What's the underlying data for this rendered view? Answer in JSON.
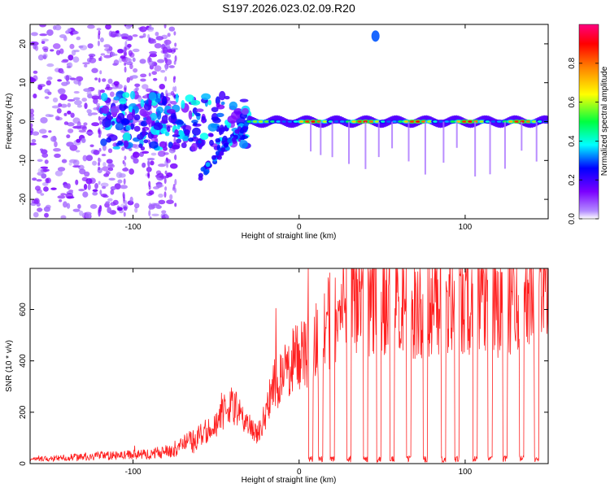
{
  "figure_title": "S197.2026.023.02.09.R20",
  "chart_data": [
    {
      "type": "heatmap",
      "title": "S197.2026.023.02.09.R20",
      "xlabel": "Height of straight line (km)",
      "ylabel": "Frequency (Hz)",
      "xlim": [
        -162,
        150
      ],
      "ylim": [
        -25,
        25
      ],
      "xticks": [
        -100,
        0,
        100
      ],
      "xtick_labels": [
        "-100",
        "0",
        "100"
      ],
      "yticks": [
        -20,
        -10,
        0,
        10,
        20
      ],
      "ytick_labels": [
        "-20",
        "-10",
        "0",
        "10",
        "20"
      ],
      "colorbar": {
        "label": "Normalized spectral amplitude",
        "range": [
          0,
          1
        ],
        "ticks": [
          0.0,
          0.2,
          0.4,
          0.6,
          0.8
        ],
        "tick_labels": [
          "0.0",
          "0.2",
          "0.4",
          "0.6",
          "0.8"
        ],
        "colors": [
          "#ffffff",
          "#7b00ff",
          "#0000ff",
          "#00ffff",
          "#00ff00",
          "#ffff00",
          "#ff8000",
          "#ff0000",
          "#ff0080"
        ]
      },
      "features": [
        {
          "name": "scattered noise",
          "x_range": [
            -162,
            -75
          ],
          "y_range": [
            -25,
            25
          ],
          "amplitude": 0.05
        },
        {
          "name": "emerging signal",
          "x_range": [
            -120,
            -30
          ],
          "freq_center": 0,
          "amplitude": 0.3
        },
        {
          "name": "descending branch",
          "x_range": [
            -60,
            -30
          ],
          "freq_from": -14,
          "freq_to": 0
        },
        {
          "name": "main carrier",
          "x_range": [
            -30,
            150
          ],
          "freq_center": 0,
          "amplitude": 0.9
        }
      ]
    },
    {
      "type": "line",
      "title": "",
      "xlabel": "Height of straight line (km)",
      "ylabel": "SNR (10 * v/v)",
      "xlim": [
        -162,
        150
      ],
      "ylim": [
        0,
        760
      ],
      "xticks": [
        -100,
        0,
        100
      ],
      "xtick_labels": [
        "-100",
        "0",
        "100"
      ],
      "yticks": [
        0,
        200,
        400,
        600
      ],
      "ytick_labels": [
        "0",
        "200",
        "400",
        "600"
      ],
      "color": "#ff2020",
      "series": [
        {
          "name": "SNR",
          "x": [
            -162,
            -150,
            -140,
            -130,
            -120,
            -110,
            -100,
            -90,
            -80,
            -70,
            -60,
            -50,
            -45,
            -40,
            -35,
            -30,
            -25,
            -20,
            -15,
            -10,
            -5,
            0,
            5,
            8,
            10,
            15,
            20,
            25,
            30,
            35,
            40,
            45,
            50,
            60,
            70,
            80,
            90,
            100,
            110,
            120,
            130,
            140,
            150
          ],
          "values": [
            15,
            18,
            22,
            25,
            28,
            30,
            32,
            35,
            45,
            65,
            95,
            150,
            190,
            220,
            180,
            140,
            110,
            190,
            300,
            330,
            380,
            410,
            420,
            440,
            470,
            490,
            560,
            600,
            620,
            610,
            590,
            600,
            620,
            600,
            590,
            580,
            600,
            590,
            610,
            600,
            620,
            640,
            650
          ]
        }
      ],
      "dropouts_x": [
        7,
        13,
        20,
        30,
        40,
        48,
        56,
        66,
        76,
        87,
        95,
        106,
        115,
        124,
        134,
        143
      ],
      "max_peak_x": 145,
      "max_peak_value": 760
    }
  ]
}
